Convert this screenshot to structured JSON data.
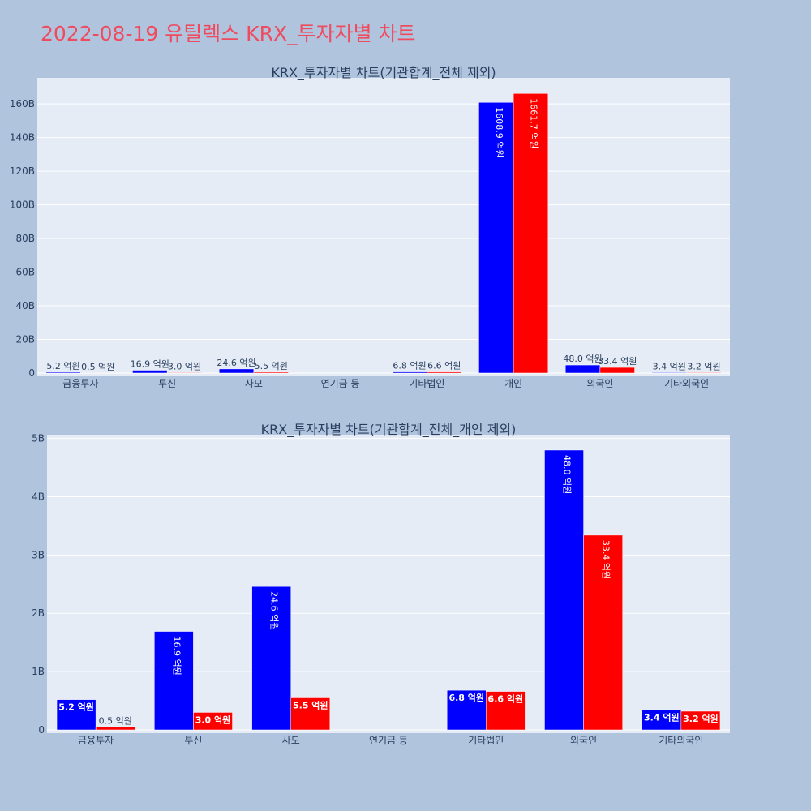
{
  "page": {
    "title": "2022-08-19 유틸렉스 KRX_투자자별 차트",
    "title_color": "#ef4b5f",
    "background": "#b0c4de"
  },
  "colors": {
    "plot_bg": "#e5ecf6",
    "grid": "#ffffff",
    "text": "#2a3f5f",
    "series_a": "#0000ff",
    "series_b": "#ff0000"
  },
  "chart_data": [
    {
      "type": "bar",
      "title": "KRX_투자자별 차트(기관합계_전체 제외)",
      "categories": [
        "금융투자",
        "투신",
        "사모",
        "연기금 등",
        "기타법인",
        "개인",
        "외국인",
        "기타외국인"
      ],
      "series": [
        {
          "color": "#0000ff",
          "values": [
            0.52,
            1.69,
            2.46,
            0,
            0.68,
            160.89,
            4.8,
            0.34
          ],
          "labels": [
            "5.2 억원",
            "16.9 억원",
            "24.6 억원",
            "",
            "6.8 억원",
            "1608.9 억원",
            "48.0 억원",
            "3.4 억원"
          ]
        },
        {
          "color": "#ff0000",
          "values": [
            0.05,
            0.3,
            0.55,
            0,
            0.66,
            166.17,
            3.34,
            0.32
          ],
          "labels": [
            "0.5 억원",
            "3.0 억원",
            "5.5 억원",
            "",
            "6.6 억원",
            "1661.7 억원",
            "33.4 억원",
            "3.2 억원"
          ]
        }
      ],
      "value_unit": "B",
      "ylim": [
        0,
        175
      ],
      "yticks": [
        0,
        20,
        40,
        60,
        80,
        100,
        120,
        140,
        160
      ],
      "ytick_labels": [
        "0",
        "20B",
        "40B",
        "60B",
        "80B",
        "100B",
        "120B",
        "140B",
        "160B"
      ],
      "grid": true,
      "legend": "none"
    },
    {
      "type": "bar",
      "title": "KRX_투자자별 차트(기관합계_전체_개인 제외)",
      "categories": [
        "금융투자",
        "투신",
        "사모",
        "연기금 등",
        "기타법인",
        "외국인",
        "기타외국인"
      ],
      "series": [
        {
          "color": "#0000ff",
          "values": [
            0.52,
            1.69,
            2.46,
            0,
            0.68,
            4.8,
            0.34
          ],
          "labels": [
            "5.2 억원",
            "16.9 억원",
            "24.6 억원",
            "",
            "6.8 억원",
            "48.0 억원",
            "3.4 억원"
          ]
        },
        {
          "color": "#ff0000",
          "values": [
            0.05,
            0.3,
            0.55,
            0,
            0.66,
            3.34,
            0.32
          ],
          "labels": [
            "0.5 억원",
            "3.0 억원",
            "5.5 억원",
            "",
            "6.6 억원",
            "33.4 억원",
            "3.2 억원"
          ]
        }
      ],
      "value_unit": "B",
      "ylim": [
        0,
        5.05
      ],
      "yticks": [
        0,
        1,
        2,
        3,
        4,
        5
      ],
      "ytick_labels": [
        "0",
        "1B",
        "2B",
        "3B",
        "4B",
        "5B"
      ],
      "grid": true,
      "legend": "none"
    }
  ]
}
